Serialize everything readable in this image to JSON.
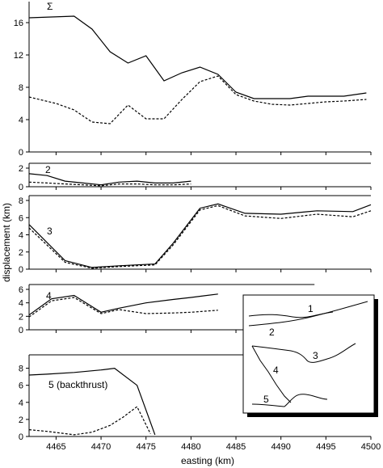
{
  "figure": {
    "xlabel": "easting (km)",
    "ylabel": "displacement (km)"
  },
  "chart_data": [
    {
      "type": "line",
      "panel_label": "Σ",
      "xlim": [
        4462,
        4500
      ],
      "ylim": [
        0,
        18
      ],
      "yticks": [
        0,
        4,
        8,
        12,
        16
      ],
      "series": [
        {
          "style": "solid",
          "x": [
            4462,
            4467,
            4469,
            4471,
            4473,
            4475,
            4477,
            4479,
            4481,
            4483,
            4485,
            4487,
            4489,
            4491,
            4493,
            4495,
            4497,
            4499.5
          ],
          "y": [
            16.6,
            16.8,
            15.2,
            12.4,
            11.0,
            11.9,
            8.8,
            9.8,
            10.5,
            9.6,
            7.4,
            6.6,
            6.6,
            6.6,
            6.9,
            6.9,
            6.9,
            7.3
          ]
        },
        {
          "style": "dashed",
          "x": [
            4462,
            4465,
            4467,
            4469,
            4471,
            4473,
            4475,
            4477,
            4479,
            4481,
            4483,
            4485,
            4487,
            4489,
            4491,
            4493,
            4495,
            4497,
            4499.5
          ],
          "y": [
            6.8,
            6.0,
            5.2,
            3.7,
            3.5,
            5.8,
            4.1,
            4.1,
            6.5,
            8.7,
            9.4,
            7.1,
            6.3,
            5.9,
            5.8,
            6.0,
            6.2,
            6.3,
            6.5
          ]
        }
      ]
    },
    {
      "type": "line",
      "panel_label": "2",
      "xlim": [
        4462,
        4500
      ],
      "ylim": [
        0,
        2
      ],
      "yticks": [
        0,
        2
      ],
      "series": [
        {
          "style": "solid",
          "x": [
            4462,
            4464,
            4466,
            4468,
            4470,
            4472,
            4474,
            4476,
            4478,
            4480
          ],
          "y": [
            1.4,
            1.2,
            0.6,
            0.4,
            0.2,
            0.5,
            0.6,
            0.4,
            0.4,
            0.6
          ]
        },
        {
          "style": "dashed",
          "x": [
            4462,
            4464,
            4466,
            4468,
            4470,
            4472,
            4474,
            4476,
            4478,
            4480
          ],
          "y": [
            0.5,
            0.4,
            0.3,
            0.2,
            0.1,
            0.3,
            0.3,
            0.2,
            0.2,
            0.3
          ]
        }
      ]
    },
    {
      "type": "line",
      "panel_label": "3",
      "xlim": [
        4462,
        4500
      ],
      "ylim": [
        0,
        8
      ],
      "yticks": [
        0,
        2,
        4,
        6,
        8
      ],
      "series": [
        {
          "style": "solid",
          "x": [
            4462,
            4466,
            4469,
            4472,
            4476,
            4478,
            4481,
            4483,
            4486,
            4490,
            4494,
            4498,
            4500
          ],
          "y": [
            5.2,
            1.0,
            0.2,
            0.4,
            0.6,
            3.0,
            7.1,
            7.6,
            6.5,
            6.4,
            6.8,
            6.7,
            7.5
          ]
        },
        {
          "style": "dashed",
          "x": [
            4462,
            4466,
            4469,
            4472,
            4476,
            4478,
            4481,
            4483,
            4486,
            4490,
            4494,
            4498,
            4500
          ],
          "y": [
            4.8,
            0.8,
            0.1,
            0.3,
            0.5,
            2.8,
            6.9,
            7.4,
            6.2,
            5.9,
            6.4,
            6.1,
            6.8
          ]
        }
      ]
    },
    {
      "type": "line",
      "panel_label": "4",
      "xlim": [
        4462,
        4500
      ],
      "ylim": [
        0,
        6
      ],
      "yticks": [
        0,
        2,
        4,
        6
      ],
      "series": [
        {
          "style": "solid",
          "x": [
            4462,
            4464.5,
            4467,
            4470,
            4472,
            4475,
            4478,
            4480,
            4483
          ],
          "y": [
            2.2,
            4.6,
            5.1,
            2.6,
            3.2,
            4.0,
            4.5,
            4.8,
            5.3
          ]
        },
        {
          "style": "dashed",
          "x": [
            4462,
            4464.5,
            4467,
            4470,
            4472,
            4475,
            4478,
            4480,
            4483
          ],
          "y": [
            1.9,
            4.3,
            4.8,
            2.4,
            3.0,
            2.4,
            2.5,
            2.6,
            2.9
          ]
        }
      ]
    },
    {
      "type": "line",
      "panel_label": "5 (backthrust)",
      "xlim": [
        4462,
        4500
      ],
      "ylim": [
        0,
        9
      ],
      "yticks": [
        0,
        2,
        4,
        6,
        8
      ],
      "xticks": [
        4465,
        4470,
        4475,
        4480,
        4485,
        4490,
        4495,
        4500
      ],
      "series": [
        {
          "style": "solid",
          "x": [
            4462,
            4464,
            4467,
            4470,
            4471.5,
            4474,
            4476
          ],
          "y": [
            7.2,
            7.3,
            7.5,
            7.8,
            8.0,
            6.0,
            0.2
          ]
        },
        {
          "style": "dashed",
          "x": [
            4462,
            4464,
            4467,
            4469,
            4471,
            4472.5,
            4474,
            4475.5
          ],
          "y": [
            0.8,
            0.6,
            0.2,
            0.5,
            1.3,
            2.3,
            3.5,
            0.3
          ]
        }
      ]
    }
  ],
  "inset": {
    "labels": [
      "1",
      "2",
      "3",
      "4",
      "5"
    ]
  }
}
